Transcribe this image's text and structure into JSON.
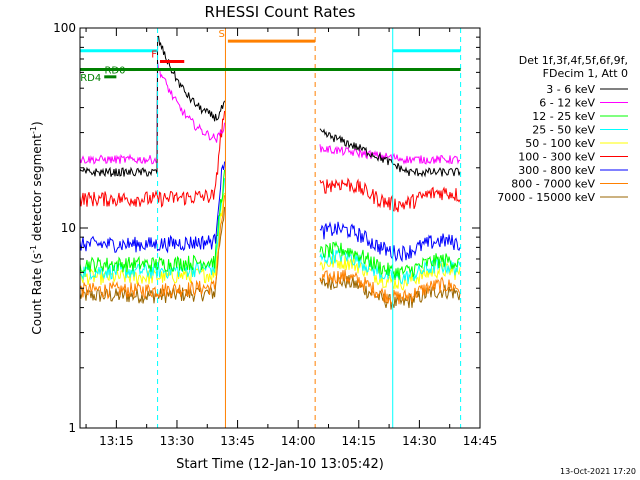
{
  "chart_data": {
    "type": "line",
    "title": "RHESSI Count Rates",
    "xlabel": "Start Time (12-Jan-10 13:05:42)",
    "ylabel_parts": [
      "Count Rate (s",
      "-1",
      " detector segment",
      "-1",
      ")"
    ],
    "yscale": "log",
    "ylim": [
      1,
      100
    ],
    "y_tick_labels": [
      {
        "value": 1,
        "label": "1"
      },
      {
        "value": 10,
        "label": "10"
      },
      {
        "value": 100,
        "label": "100"
      }
    ],
    "x_range_minutes": [
      13.1,
      14.75
    ],
    "x_tick_labels": [
      {
        "value": 13.25,
        "label": "13:15"
      },
      {
        "value": 13.5,
        "label": "13:30"
      },
      {
        "value": 13.75,
        "label": "13:45"
      },
      {
        "value": 14.0,
        "label": "14:00"
      },
      {
        "value": 14.25,
        "label": "14:15"
      },
      {
        "value": 14.5,
        "label": "14:30"
      },
      {
        "value": 14.75,
        "label": "14:45"
      }
    ],
    "legend_header": [
      "Det 1f,3f,4f,5f,6f,9f,",
      "FDecim 1, Att 0"
    ],
    "legend_position": "right",
    "series": [
      {
        "name": "3 - 6 keV",
        "color": "#000000",
        "pre": 19,
        "post_start": 30,
        "post_end": 19
      },
      {
        "name": "6 - 12 keV",
        "color": "#ff00ff",
        "pre": 22,
        "post_start": 25,
        "post_end": 22
      },
      {
        "name": "12 - 25 keV",
        "color": "#00ff00",
        "pre": 6.6,
        "post_start": 7.5,
        "post_end": 6.4
      },
      {
        "name": "25 - 50 keV",
        "color": "#00ffff",
        "pre": 6.1,
        "post_start": 7.0,
        "post_end": 6.0
      },
      {
        "name": "50 - 100 keV",
        "color": "#ffff00",
        "pre": 5.7,
        "post_start": 6.5,
        "post_end": 5.7
      },
      {
        "name": "100 - 300 keV",
        "color": "#ff0000",
        "pre": 14,
        "post_start": 16,
        "post_end": 14
      },
      {
        "name": "300 - 800 keV",
        "color": "#0000ff",
        "pre": 8.3,
        "post_start": 9.5,
        "post_end": 8.0
      },
      {
        "name": "800 - 7000 keV",
        "color": "#ff8000",
        "pre": 4.9,
        "post_start": 5.5,
        "post_end": 4.8
      },
      {
        "name": "7000 - 15000 keV",
        "color": "#996600",
        "pre": 4.6,
        "post_start": 5.2,
        "post_end": 4.5
      }
    ],
    "data_segments": [
      [
        13.1,
        13.42
      ],
      [
        13.42,
        13.7
      ],
      [
        14.09,
        14.67
      ]
    ],
    "black_decay": {
      "start": 90,
      "end": 32
    },
    "magenta_decay": {
      "start": 65,
      "end": 25
    },
    "vertical_lines": [
      {
        "x": 13.1,
        "color": "#00ffff",
        "style": "solid"
      },
      {
        "x": 13.42,
        "color": "#00ffff",
        "style": "dashed"
      },
      {
        "x": 13.7,
        "color": "#ff8000",
        "style": "solid"
      },
      {
        "x": 14.07,
        "color": "#ff8000",
        "style": "dashed"
      },
      {
        "x": 14.39,
        "color": "#00ffff",
        "style": "solid"
      },
      {
        "x": 14.67,
        "color": "#00ffff",
        "style": "dashed"
      }
    ],
    "flag_bars": [
      {
        "label": "",
        "color": "#00ffff",
        "x0": 13.1,
        "x1": 13.42,
        "y": 77
      },
      {
        "label": "",
        "color": "#00ffff",
        "x0": 14.39,
        "x1": 14.67,
        "y": 77
      },
      {
        "label": "",
        "color": "#008000",
        "x0": 13.1,
        "x1": 14.67,
        "y": 62
      },
      {
        "label": "RD4",
        "color": "#008000",
        "x0": 13.2,
        "x1": 13.25,
        "y": 57
      },
      {
        "label": "RD0",
        "color": "#008000",
        "x0": 13.3,
        "x1": 13.33,
        "y": 62
      },
      {
        "label": "F",
        "color": "#ff0000",
        "x0": 13.43,
        "x1": 13.53,
        "y": 68
      },
      {
        "label": "S",
        "color": "#ff8000",
        "x0": 13.71,
        "x1": 14.07,
        "y": 86
      }
    ],
    "footer_date": "13-Oct-2021 17:20"
  }
}
